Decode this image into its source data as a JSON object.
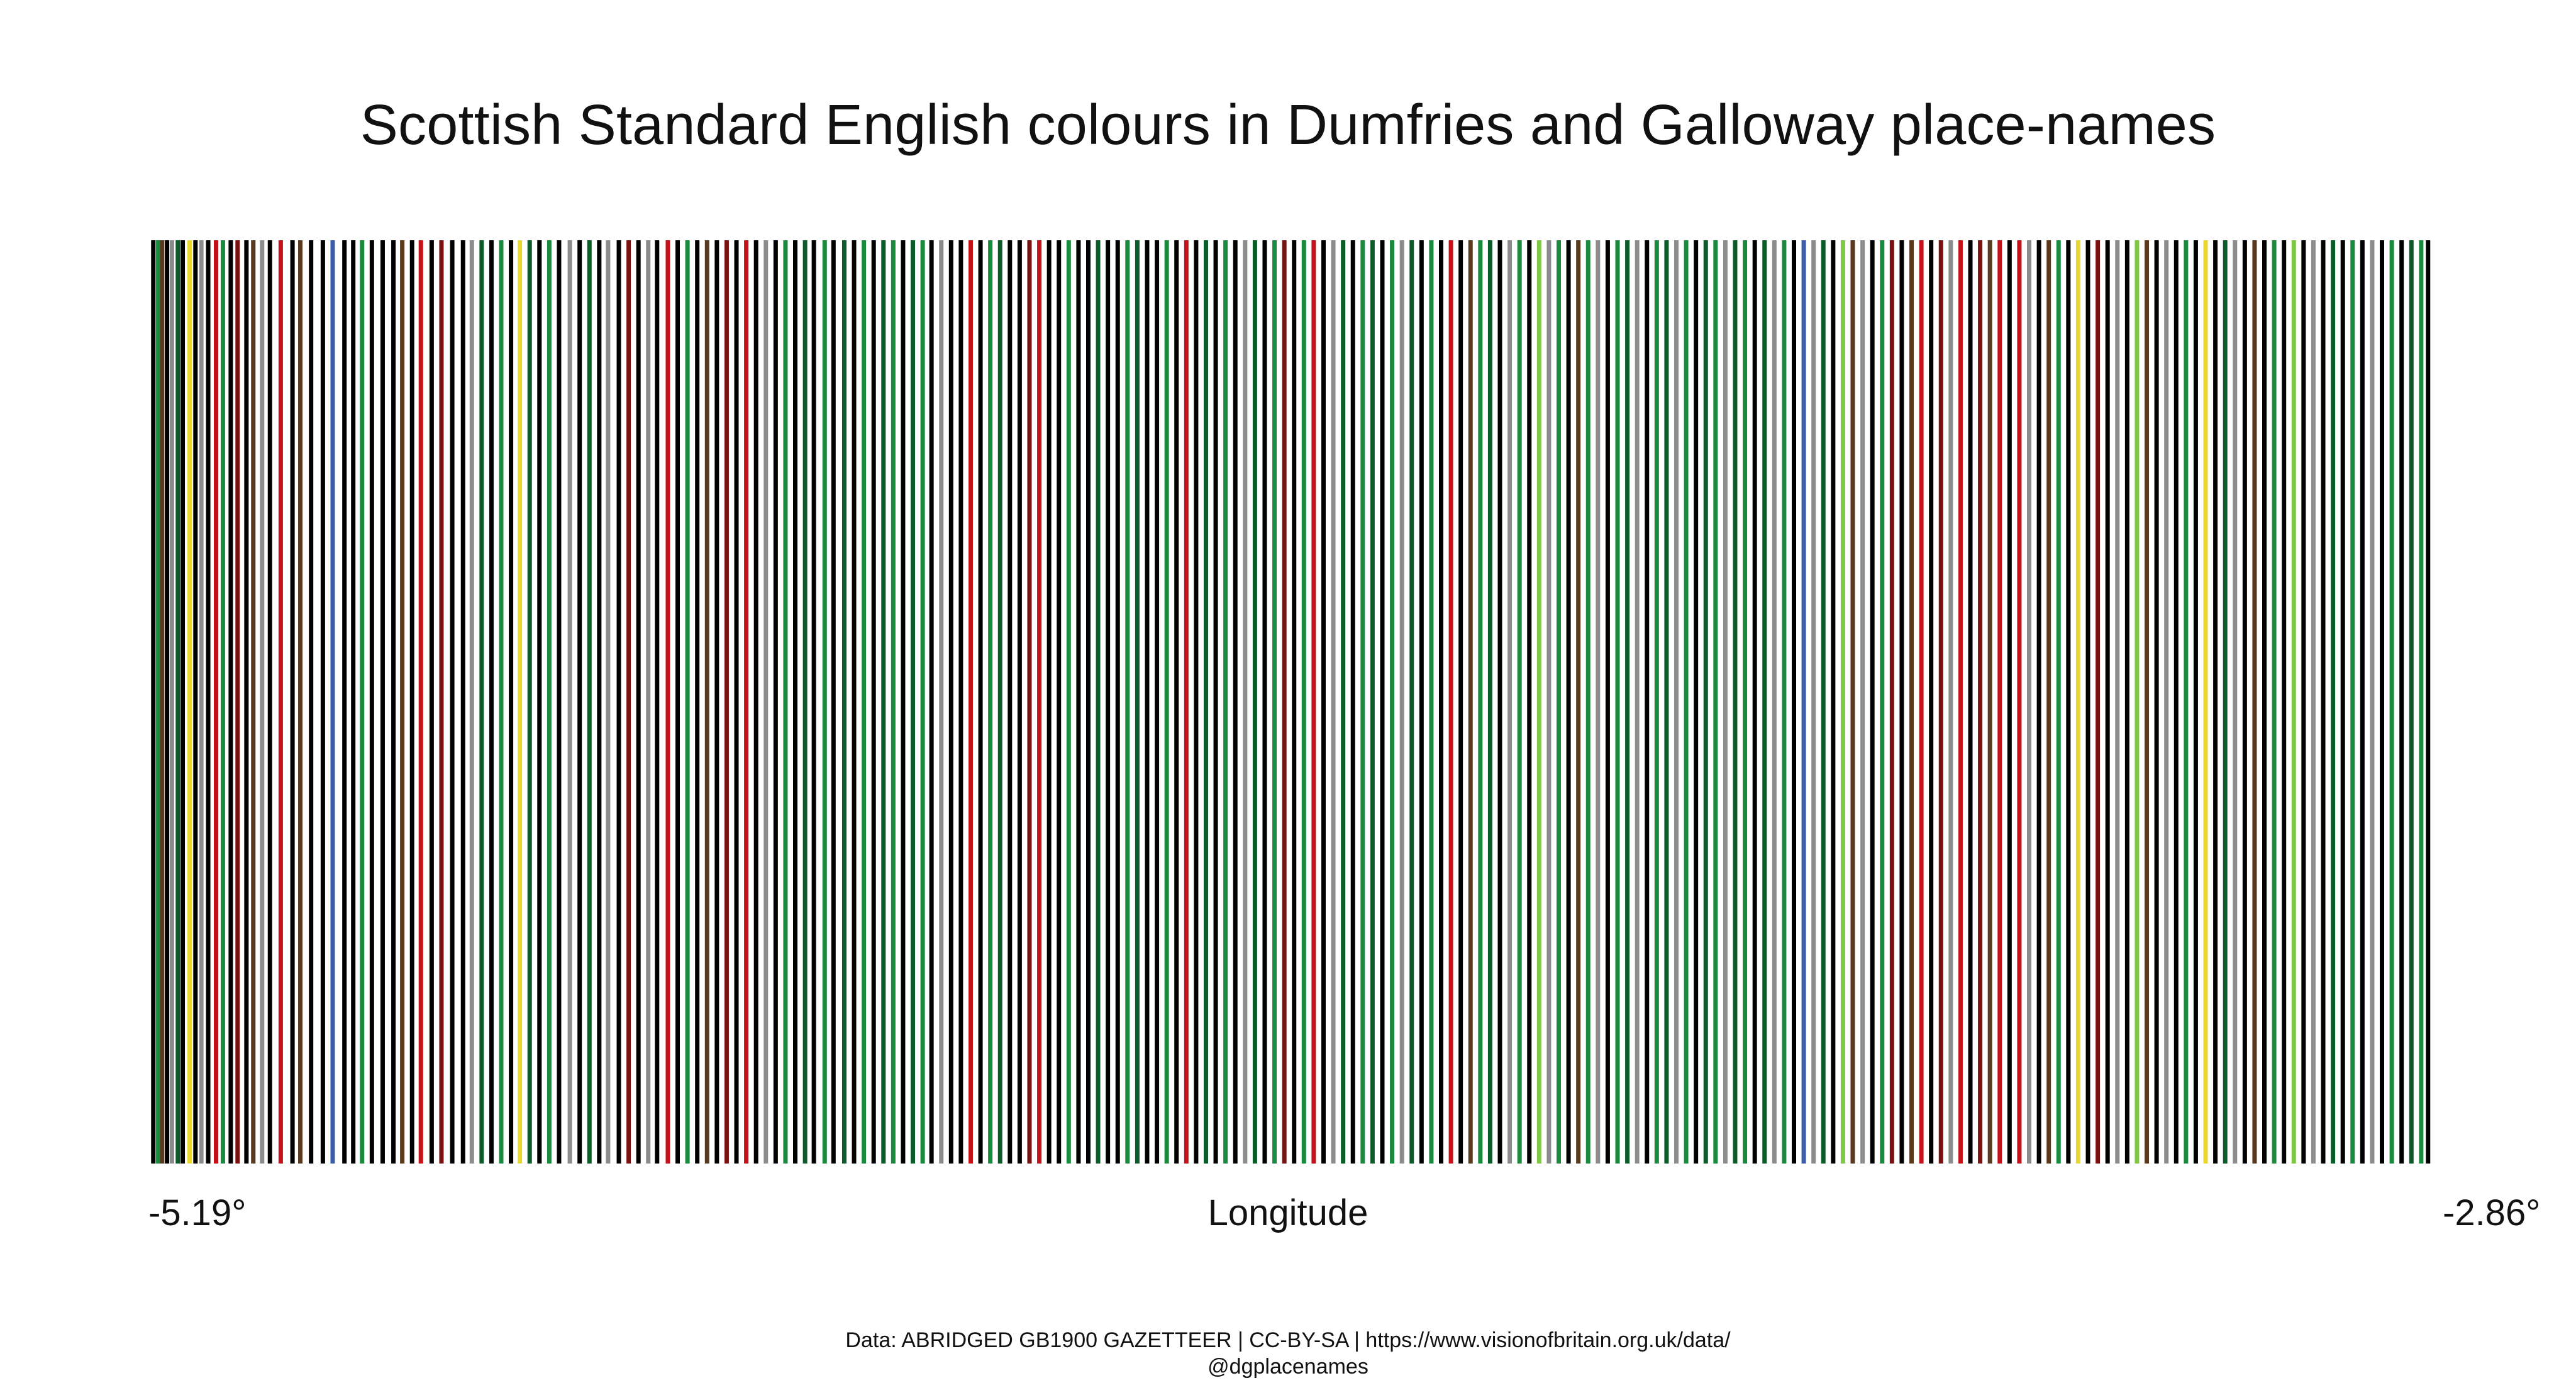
{
  "chart_data": {
    "type": "bar",
    "title": "Scottish Standard English colours in Dumfries and Galloway place-names",
    "xlabel": "Longitude",
    "ylabel": "",
    "xlim": [
      -5.19,
      -2.86
    ],
    "x_tick_labels": [
      "-5.19°",
      "-2.86°"
    ],
    "grid": false,
    "legend": "none",
    "colors": {
      "black": "#000000",
      "green": "#1a8a3e",
      "dark-green": "#0c5c2a",
      "red": "#c4121a",
      "dark-red": "#7a1212",
      "brown": "#5a3a1e",
      "grey": "#8c8c8c",
      "white": "#ffffff",
      "yellow": "#e8d830",
      "light-green": "#7ec845",
      "blue": "#3a5fa8",
      "pink": "#e8a0a0"
    },
    "stripes": [
      {
        "lon": -5.185,
        "color": "black"
      },
      {
        "lon": -5.18,
        "color": "green"
      },
      {
        "lon": -5.176,
        "color": "brown"
      },
      {
        "lon": -5.171,
        "color": "black"
      },
      {
        "lon": -5.166,
        "color": "grey"
      },
      {
        "lon": -5.16,
        "color": "dark-green"
      },
      {
        "lon": -5.155,
        "color": "black"
      },
      {
        "lon": -5.148,
        "color": "yellow"
      },
      {
        "lon": -5.142,
        "color": "black"
      },
      {
        "lon": -5.136,
        "color": "grey"
      },
      {
        "lon": -5.129,
        "color": "black"
      },
      {
        "lon": -5.121,
        "color": "red"
      },
      {
        "lon": -5.114,
        "color": "green"
      },
      {
        "lon": -5.106,
        "color": "black"
      },
      {
        "lon": -5.099,
        "color": "dark-red"
      },
      {
        "lon": -5.09,
        "color": "black"
      },
      {
        "lon": -5.083,
        "color": "brown"
      },
      {
        "lon": -5.074,
        "color": "grey"
      },
      {
        "lon": -5.066,
        "color": "black"
      },
      {
        "lon": -5.055,
        "color": "red"
      },
      {
        "lon": -5.043,
        "color": "black"
      },
      {
        "lon": -5.035,
        "color": "brown"
      },
      {
        "lon": -5.024,
        "color": "black"
      },
      {
        "lon": -5.012,
        "color": "black"
      },
      {
        "lon": -5.002,
        "color": "blue"
      },
      {
        "lon": -4.99,
        "color": "black"
      },
      {
        "lon": -4.981,
        "color": "black"
      },
      {
        "lon": -4.972,
        "color": "green"
      },
      {
        "lon": -4.962,
        "color": "black"
      },
      {
        "lon": -4.951,
        "color": "black"
      },
      {
        "lon": -4.94,
        "color": "black"
      },
      {
        "lon": -4.931,
        "color": "brown"
      },
      {
        "lon": -4.921,
        "color": "black"
      },
      {
        "lon": -4.912,
        "color": "red"
      },
      {
        "lon": -4.901,
        "color": "black"
      },
      {
        "lon": -4.891,
        "color": "dark-red"
      },
      {
        "lon": -4.88,
        "color": "black"
      },
      {
        "lon": -4.869,
        "color": "black"
      },
      {
        "lon": -4.86,
        "color": "grey"
      },
      {
        "lon": -4.85,
        "color": "dark-green"
      },
      {
        "lon": -4.84,
        "color": "black"
      },
      {
        "lon": -4.83,
        "color": "green"
      },
      {
        "lon": -4.82,
        "color": "black"
      },
      {
        "lon": -4.811,
        "color": "yellow"
      },
      {
        "lon": -4.801,
        "color": "dark-green"
      },
      {
        "lon": -4.791,
        "color": "black"
      },
      {
        "lon": -4.781,
        "color": "green"
      },
      {
        "lon": -4.771,
        "color": "black"
      },
      {
        "lon": -4.76,
        "color": "grey"
      },
      {
        "lon": -4.75,
        "color": "black"
      },
      {
        "lon": -4.74,
        "color": "dark-green"
      },
      {
        "lon": -4.73,
        "color": "black"
      },
      {
        "lon": -4.721,
        "color": "grey"
      },
      {
        "lon": -4.71,
        "color": "black"
      },
      {
        "lon": -4.7,
        "color": "dark-red"
      },
      {
        "lon": -4.69,
        "color": "black"
      },
      {
        "lon": -4.68,
        "color": "grey"
      },
      {
        "lon": -4.671,
        "color": "black"
      },
      {
        "lon": -4.66,
        "color": "red"
      },
      {
        "lon": -4.65,
        "color": "black"
      },
      {
        "lon": -4.64,
        "color": "green"
      },
      {
        "lon": -4.63,
        "color": "black"
      },
      {
        "lon": -4.62,
        "color": "brown"
      },
      {
        "lon": -4.61,
        "color": "black"
      },
      {
        "lon": -4.6,
        "color": "dark-red"
      },
      {
        "lon": -4.59,
        "color": "black"
      },
      {
        "lon": -4.58,
        "color": "red"
      },
      {
        "lon": -4.57,
        "color": "black"
      },
      {
        "lon": -4.56,
        "color": "grey"
      },
      {
        "lon": -4.55,
        "color": "black"
      },
      {
        "lon": -4.54,
        "color": "green"
      },
      {
        "lon": -4.53,
        "color": "black"
      },
      {
        "lon": -4.52,
        "color": "dark-green"
      },
      {
        "lon": -4.511,
        "color": "black"
      },
      {
        "lon": -4.5,
        "color": "green"
      },
      {
        "lon": -4.491,
        "color": "black"
      },
      {
        "lon": -4.48,
        "color": "dark-green"
      },
      {
        "lon": -4.47,
        "color": "black"
      },
      {
        "lon": -4.46,
        "color": "green"
      },
      {
        "lon": -4.45,
        "color": "black"
      },
      {
        "lon": -4.44,
        "color": "dark-green"
      },
      {
        "lon": -4.43,
        "color": "green"
      },
      {
        "lon": -4.42,
        "color": "black"
      },
      {
        "lon": -4.41,
        "color": "dark-green"
      },
      {
        "lon": -4.4,
        "color": "green"
      },
      {
        "lon": -4.391,
        "color": "black"
      },
      {
        "lon": -4.381,
        "color": "grey"
      },
      {
        "lon": -4.371,
        "color": "black"
      },
      {
        "lon": -4.361,
        "color": "black"
      },
      {
        "lon": -4.351,
        "color": "red"
      },
      {
        "lon": -4.341,
        "color": "black"
      },
      {
        "lon": -4.331,
        "color": "green"
      },
      {
        "lon": -4.321,
        "color": "dark-green"
      },
      {
        "lon": -4.311,
        "color": "black"
      },
      {
        "lon": -4.301,
        "color": "black"
      },
      {
        "lon": -4.291,
        "color": "dark-red"
      },
      {
        "lon": -4.281,
        "color": "red"
      },
      {
        "lon": -4.271,
        "color": "black"
      },
      {
        "lon": -4.261,
        "color": "black"
      },
      {
        "lon": -4.251,
        "color": "green"
      },
      {
        "lon": -4.241,
        "color": "black"
      },
      {
        "lon": -4.231,
        "color": "black"
      },
      {
        "lon": -4.221,
        "color": "dark-green"
      },
      {
        "lon": -4.211,
        "color": "black"
      },
      {
        "lon": -4.201,
        "color": "black"
      },
      {
        "lon": -4.191,
        "color": "green"
      },
      {
        "lon": -4.181,
        "color": "dark-green"
      },
      {
        "lon": -4.171,
        "color": "black"
      },
      {
        "lon": -4.161,
        "color": "black"
      },
      {
        "lon": -4.151,
        "color": "green"
      },
      {
        "lon": -4.141,
        "color": "black"
      },
      {
        "lon": -4.131,
        "color": "red"
      },
      {
        "lon": -4.121,
        "color": "black"
      },
      {
        "lon": -4.111,
        "color": "dark-green"
      },
      {
        "lon": -4.101,
        "color": "black"
      },
      {
        "lon": -4.091,
        "color": "green"
      },
      {
        "lon": -4.081,
        "color": "black"
      },
      {
        "lon": -4.071,
        "color": "grey"
      },
      {
        "lon": -4.061,
        "color": "dark-green"
      },
      {
        "lon": -4.051,
        "color": "black"
      },
      {
        "lon": -4.041,
        "color": "green"
      },
      {
        "lon": -4.031,
        "color": "dark-red"
      },
      {
        "lon": -4.021,
        "color": "black"
      },
      {
        "lon": -4.011,
        "color": "green"
      },
      {
        "lon": -4.001,
        "color": "red"
      },
      {
        "lon": -3.991,
        "color": "black"
      },
      {
        "lon": -3.981,
        "color": "grey"
      },
      {
        "lon": -3.971,
        "color": "dark-green"
      },
      {
        "lon": -3.961,
        "color": "black"
      },
      {
        "lon": -3.951,
        "color": "green"
      },
      {
        "lon": -3.941,
        "color": "dark-green"
      },
      {
        "lon": -3.931,
        "color": "black"
      },
      {
        "lon": -3.921,
        "color": "green"
      },
      {
        "lon": -3.911,
        "color": "grey"
      },
      {
        "lon": -3.901,
        "color": "dark-green"
      },
      {
        "lon": -3.891,
        "color": "black"
      },
      {
        "lon": -3.881,
        "color": "green"
      },
      {
        "lon": -3.871,
        "color": "black"
      },
      {
        "lon": -3.861,
        "color": "red"
      },
      {
        "lon": -3.851,
        "color": "black"
      },
      {
        "lon": -3.841,
        "color": "brown"
      },
      {
        "lon": -3.831,
        "color": "green"
      },
      {
        "lon": -3.821,
        "color": "dark-green"
      },
      {
        "lon": -3.811,
        "color": "black"
      },
      {
        "lon": -3.801,
        "color": "grey"
      },
      {
        "lon": -3.791,
        "color": "green"
      },
      {
        "lon": -3.781,
        "color": "black"
      },
      {
        "lon": -3.771,
        "color": "light-green"
      },
      {
        "lon": -3.761,
        "color": "grey"
      },
      {
        "lon": -3.751,
        "color": "green"
      },
      {
        "lon": -3.741,
        "color": "black"
      },
      {
        "lon": -3.731,
        "color": "brown"
      },
      {
        "lon": -3.721,
        "color": "green"
      },
      {
        "lon": -3.711,
        "color": "grey"
      },
      {
        "lon": -3.701,
        "color": "black"
      },
      {
        "lon": -3.691,
        "color": "green"
      },
      {
        "lon": -3.681,
        "color": "dark-green"
      },
      {
        "lon": -3.671,
        "color": "grey"
      },
      {
        "lon": -3.661,
        "color": "black"
      },
      {
        "lon": -3.651,
        "color": "green"
      },
      {
        "lon": -3.641,
        "color": "dark-green"
      },
      {
        "lon": -3.631,
        "color": "grey"
      },
      {
        "lon": -3.621,
        "color": "green"
      },
      {
        "lon": -3.611,
        "color": "black"
      },
      {
        "lon": -3.601,
        "color": "dark-green"
      },
      {
        "lon": -3.591,
        "color": "green"
      },
      {
        "lon": -3.581,
        "color": "grey"
      },
      {
        "lon": -3.571,
        "color": "dark-green"
      },
      {
        "lon": -3.561,
        "color": "green"
      },
      {
        "lon": -3.551,
        "color": "black"
      },
      {
        "lon": -3.541,
        "color": "dark-green"
      },
      {
        "lon": -3.531,
        "color": "grey"
      },
      {
        "lon": -3.521,
        "color": "green"
      },
      {
        "lon": -3.511,
        "color": "black"
      },
      {
        "lon": -3.501,
        "color": "blue"
      },
      {
        "lon": -3.491,
        "color": "grey"
      },
      {
        "lon": -3.481,
        "color": "dark-green"
      },
      {
        "lon": -3.471,
        "color": "black"
      },
      {
        "lon": -3.461,
        "color": "light-green"
      },
      {
        "lon": -3.451,
        "color": "brown"
      },
      {
        "lon": -3.441,
        "color": "grey"
      },
      {
        "lon": -3.431,
        "color": "black"
      },
      {
        "lon": -3.421,
        "color": "green"
      },
      {
        "lon": -3.411,
        "color": "dark-red"
      },
      {
        "lon": -3.401,
        "color": "black"
      },
      {
        "lon": -3.391,
        "color": "brown"
      },
      {
        "lon": -3.381,
        "color": "red"
      },
      {
        "lon": -3.371,
        "color": "black"
      },
      {
        "lon": -3.361,
        "color": "dark-red"
      },
      {
        "lon": -3.351,
        "color": "grey"
      },
      {
        "lon": -3.341,
        "color": "red"
      },
      {
        "lon": -3.331,
        "color": "black"
      },
      {
        "lon": -3.321,
        "color": "dark-red"
      },
      {
        "lon": -3.311,
        "color": "brown"
      },
      {
        "lon": -3.301,
        "color": "red"
      },
      {
        "lon": -3.291,
        "color": "black"
      },
      {
        "lon": -3.281,
        "color": "red"
      },
      {
        "lon": -3.271,
        "color": "grey"
      },
      {
        "lon": -3.261,
        "color": "black"
      },
      {
        "lon": -3.251,
        "color": "brown"
      },
      {
        "lon": -3.241,
        "color": "green"
      },
      {
        "lon": -3.231,
        "color": "black"
      },
      {
        "lon": -3.221,
        "color": "yellow"
      },
      {
        "lon": -3.211,
        "color": "black"
      },
      {
        "lon": -3.201,
        "color": "dark-red"
      },
      {
        "lon": -3.191,
        "color": "black"
      },
      {
        "lon": -3.181,
        "color": "grey"
      },
      {
        "lon": -3.171,
        "color": "black"
      },
      {
        "lon": -3.161,
        "color": "light-green"
      },
      {
        "lon": -3.151,
        "color": "brown"
      },
      {
        "lon": -3.141,
        "color": "black"
      },
      {
        "lon": -3.131,
        "color": "grey"
      },
      {
        "lon": -3.121,
        "color": "black"
      },
      {
        "lon": -3.111,
        "color": "green"
      },
      {
        "lon": -3.101,
        "color": "black"
      },
      {
        "lon": -3.091,
        "color": "yellow"
      },
      {
        "lon": -3.081,
        "color": "black"
      },
      {
        "lon": -3.071,
        "color": "dark-green"
      },
      {
        "lon": -3.061,
        "color": "grey"
      },
      {
        "lon": -3.051,
        "color": "black"
      },
      {
        "lon": -3.041,
        "color": "brown"
      },
      {
        "lon": -3.031,
        "color": "black"
      },
      {
        "lon": -3.021,
        "color": "green"
      },
      {
        "lon": -3.011,
        "color": "black"
      },
      {
        "lon": -3.001,
        "color": "light-green"
      },
      {
        "lon": -2.991,
        "color": "black"
      },
      {
        "lon": -2.981,
        "color": "grey"
      },
      {
        "lon": -2.971,
        "color": "black"
      },
      {
        "lon": -2.961,
        "color": "dark-green"
      },
      {
        "lon": -2.951,
        "color": "black"
      },
      {
        "lon": -2.941,
        "color": "green"
      },
      {
        "lon": -2.931,
        "color": "black"
      },
      {
        "lon": -2.921,
        "color": "grey"
      },
      {
        "lon": -2.911,
        "color": "black"
      },
      {
        "lon": -2.901,
        "color": "green"
      },
      {
        "lon": -2.891,
        "color": "black"
      },
      {
        "lon": -2.881,
        "color": "dark-green"
      },
      {
        "lon": -2.871,
        "color": "green"
      },
      {
        "lon": -2.864,
        "color": "black"
      }
    ]
  },
  "credit": {
    "line1": "Data: ABRIDGED GB1900 GAZETTEER | CC-BY-SA | https://www.visionofbritain.org.uk/data/",
    "line2": "@dgplacenames"
  }
}
